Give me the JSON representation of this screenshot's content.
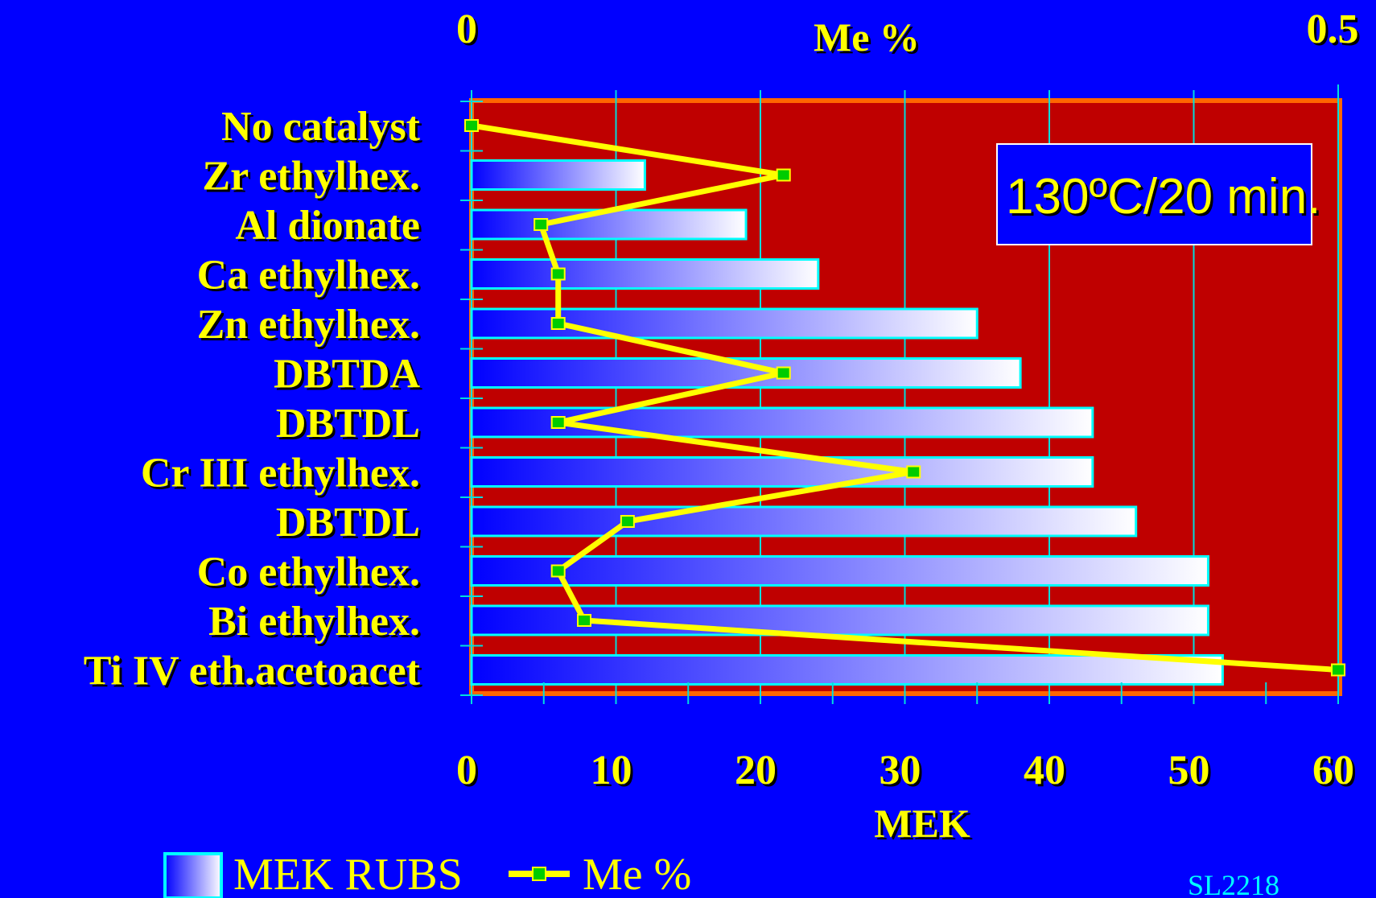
{
  "chart_data": {
    "type": "bar",
    "orientation": "horizontal",
    "categories": [
      "No catalyst",
      "Zr ethylhex.",
      "Al dionate",
      "Ca ethylhex.",
      "Zn ethylhex.",
      "DBTDA",
      "DBTDL",
      "Cr III ethylhex.",
      "DBTDL",
      "Co ethylhex.",
      "Bi ethylhex.",
      "Ti IV eth.acetoacet"
    ],
    "series": [
      {
        "name": "MEK RUBS",
        "type": "bar",
        "axis": "bottom",
        "values": [
          0,
          12,
          19,
          24,
          35,
          38,
          43,
          43,
          46,
          51,
          51,
          52
        ]
      },
      {
        "name": "Me %",
        "type": "line",
        "axis": "top",
        "values": [
          0,
          0.18,
          0.04,
          0.05,
          0.05,
          0.18,
          0.05,
          0.255,
          0.09,
          0.05,
          0.065,
          0.5
        ]
      }
    ],
    "bottom_axis": {
      "label": "MEK",
      "range": [
        0,
        60
      ],
      "ticks": [
        "0",
        "10",
        "20",
        "30",
        "40",
        "50",
        "60"
      ]
    },
    "top_axis": {
      "label": "Me %",
      "range": [
        0,
        0.5
      ],
      "ticks": [
        "0",
        "0.5"
      ]
    },
    "annotation": "130ºC/20 min.",
    "footer": "SL2218",
    "grid": true,
    "legend_position": "bottom-left",
    "colors": {
      "background": "#0000ff",
      "plot_area": "#bf0000",
      "plot_border": "#ff6600",
      "grid": "#00dddd",
      "bar_start": "#0000ff",
      "bar_end": "#ffffff",
      "bar_border": "#00ffff",
      "line": "#ffff00",
      "marker": "#00cc00",
      "text": "#ffff00",
      "footer_text": "#00ffff"
    }
  }
}
